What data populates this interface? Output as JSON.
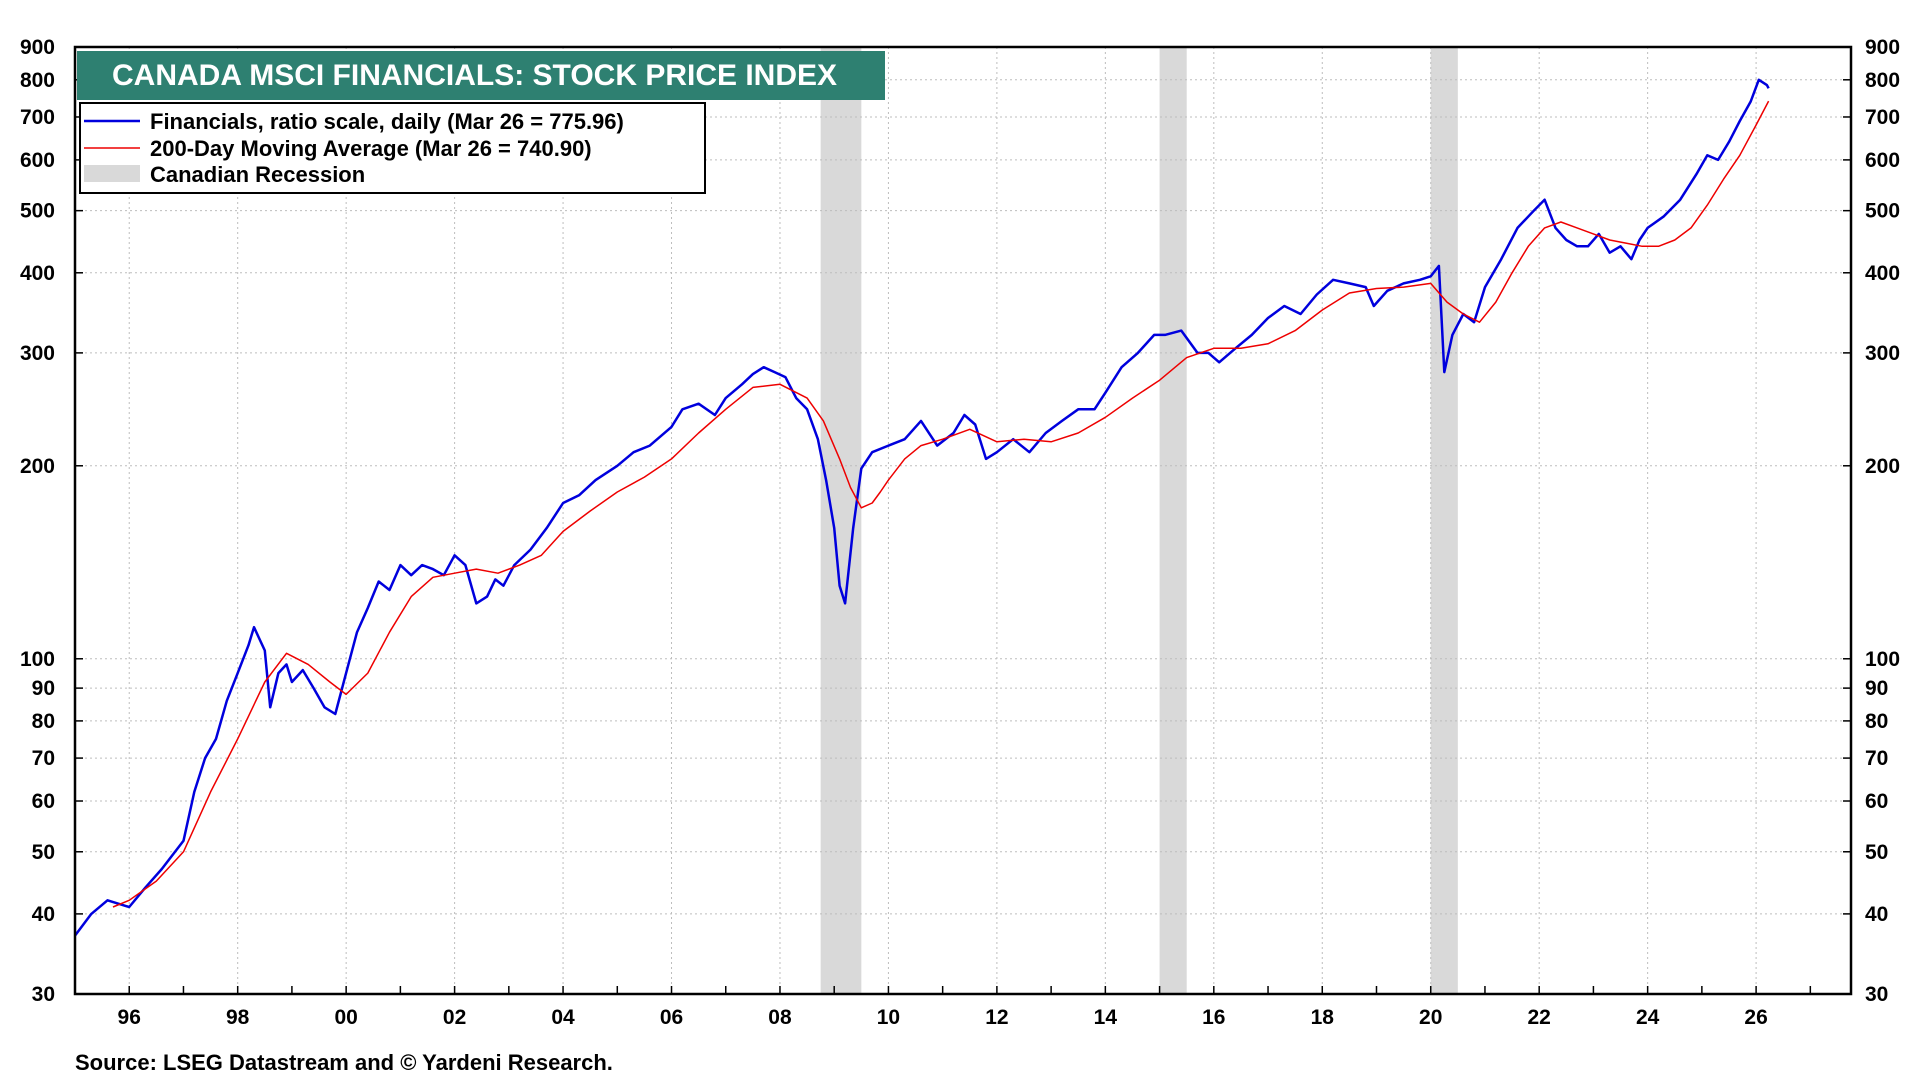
{
  "chart_data": {
    "type": "line",
    "title": "CANADA MSCI FINANCIALS: STOCK PRICE INDEX",
    "source": "Source: LSEG Datastream and © Yardeni Research.",
    "scale": "log",
    "xlim": [
      1995.0,
      2027.75
    ],
    "ylim": [
      30,
      900
    ],
    "x_ticks": [
      {
        "value": 1996,
        "label": "96"
      },
      {
        "value": 1998,
        "label": "98"
      },
      {
        "value": 2000,
        "label": "00"
      },
      {
        "value": 2002,
        "label": "02"
      },
      {
        "value": 2004,
        "label": "04"
      },
      {
        "value": 2006,
        "label": "06"
      },
      {
        "value": 2008,
        "label": "08"
      },
      {
        "value": 2010,
        "label": "10"
      },
      {
        "value": 2012,
        "label": "12"
      },
      {
        "value": 2014,
        "label": "14"
      },
      {
        "value": 2016,
        "label": "16"
      },
      {
        "value": 2018,
        "label": "18"
      },
      {
        "value": 2020,
        "label": "20"
      },
      {
        "value": 2022,
        "label": "22"
      },
      {
        "value": 2024,
        "label": "24"
      },
      {
        "value": 2026,
        "label": "26"
      }
    ],
    "y_ticks": [
      {
        "value": 30,
        "label": "30"
      },
      {
        "value": 40,
        "label": "40"
      },
      {
        "value": 50,
        "label": "50"
      },
      {
        "value": 60,
        "label": "60"
      },
      {
        "value": 70,
        "label": "70"
      },
      {
        "value": 80,
        "label": "80"
      },
      {
        "value": 90,
        "label": "90"
      },
      {
        "value": 100,
        "label": "100"
      },
      {
        "value": 200,
        "label": "200"
      },
      {
        "value": 300,
        "label": "300"
      },
      {
        "value": 400,
        "label": "400"
      },
      {
        "value": 500,
        "label": "500"
      },
      {
        "value": 600,
        "label": "600"
      },
      {
        "value": 700,
        "label": "700"
      },
      {
        "value": 800,
        "label": "800"
      },
      {
        "value": 900,
        "label": "900"
      }
    ],
    "recessions": [
      {
        "start": 2008.75,
        "end": 2009.5
      },
      {
        "start": 2015.0,
        "end": 2015.5
      },
      {
        "start": 2020.0,
        "end": 2020.5
      }
    ],
    "legend": [
      {
        "label": "Financials, ratio scale, daily (Mar 26 = 775.96)",
        "kind": "line",
        "color": "#0000dd"
      },
      {
        "label": "200-Day Moving Average (Mar 26 = 740.90)",
        "kind": "line",
        "color": "#ee0000"
      },
      {
        "label": "Canadian Recession",
        "kind": "box",
        "color": "#d9d9d9"
      }
    ],
    "series": [
      {
        "name": "Financials",
        "color": "#0000dd",
        "x": [
          1995.0,
          1995.3,
          1995.6,
          1996.0,
          1996.3,
          1996.6,
          1997.0,
          1997.2,
          1997.4,
          1997.6,
          1997.8,
          1998.0,
          1998.2,
          1998.3,
          1998.5,
          1998.6,
          1998.75,
          1998.9,
          1999.0,
          1999.2,
          1999.4,
          1999.6,
          1999.8,
          2000.0,
          2000.2,
          2000.4,
          2000.6,
          2000.8,
          2001.0,
          2001.2,
          2001.4,
          2001.6,
          2001.8,
          2002.0,
          2002.2,
          2002.4,
          2002.6,
          2002.75,
          2002.9,
          2003.1,
          2003.4,
          2003.7,
          2004.0,
          2004.3,
          2004.6,
          2005.0,
          2005.3,
          2005.6,
          2006.0,
          2006.2,
          2006.5,
          2006.8,
          2007.0,
          2007.3,
          2007.5,
          2007.7,
          2007.9,
          2008.1,
          2008.3,
          2008.5,
          2008.7,
          2008.85,
          2009.0,
          2009.1,
          2009.2,
          2009.35,
          2009.5,
          2009.7,
          2010.0,
          2010.3,
          2010.6,
          2010.9,
          2011.2,
          2011.4,
          2011.6,
          2011.8,
          2012.0,
          2012.3,
          2012.6,
          2012.9,
          2013.2,
          2013.5,
          2013.8,
          2014.0,
          2014.3,
          2014.6,
          2014.9,
          2015.1,
          2015.4,
          2015.7,
          2015.9,
          2016.1,
          2016.4,
          2016.7,
          2017.0,
          2017.3,
          2017.6,
          2017.9,
          2018.2,
          2018.5,
          2018.8,
          2018.95,
          2019.2,
          2019.5,
          2019.8,
          2020.0,
          2020.15,
          2020.25,
          2020.4,
          2020.6,
          2020.8,
          2021.0,
          2021.3,
          2021.6,
          2021.9,
          2022.1,
          2022.3,
          2022.5,
          2022.7,
          2022.9,
          2023.1,
          2023.3,
          2023.5,
          2023.7,
          2023.85,
          2024.0,
          2024.3,
          2024.6,
          2024.9,
          2025.1,
          2025.3,
          2025.5,
          2025.7,
          2025.9,
          2026.05,
          2026.2,
          2026.23
        ],
        "values": [
          37,
          40,
          42,
          41,
          44,
          47,
          52,
          62,
          70,
          75,
          86,
          95,
          105,
          112,
          103,
          84,
          95,
          98,
          92,
          96,
          90,
          84,
          82,
          95,
          110,
          120,
          132,
          128,
          140,
          135,
          140,
          138,
          135,
          145,
          140,
          122,
          125,
          133,
          130,
          140,
          148,
          160,
          175,
          180,
          190,
          200,
          210,
          215,
          230,
          245,
          250,
          240,
          255,
          268,
          278,
          285,
          280,
          275,
          255,
          245,
          220,
          190,
          160,
          130,
          122,
          160,
          198,
          210,
          215,
          220,
          235,
          215,
          225,
          240,
          232,
          205,
          210,
          220,
          210,
          225,
          235,
          245,
          245,
          260,
          285,
          300,
          320,
          320,
          325,
          300,
          300,
          290,
          305,
          320,
          340,
          355,
          345,
          370,
          390,
          385,
          380,
          355,
          375,
          385,
          390,
          395,
          410,
          280,
          320,
          345,
          335,
          380,
          420,
          470,
          500,
          520,
          470,
          450,
          440,
          440,
          460,
          430,
          440,
          420,
          450,
          470,
          490,
          520,
          570,
          610,
          600,
          640,
          690,
          740,
          800,
          785,
          776
        ]
      },
      {
        "name": "200-Day Moving Average",
        "color": "#ee0000",
        "x": [
          1995.7,
          1996.0,
          1996.5,
          1997.0,
          1997.5,
          1998.0,
          1998.5,
          1998.9,
          1999.3,
          1999.7,
          2000.0,
          2000.4,
          2000.8,
          2001.2,
          2001.6,
          2002.0,
          2002.4,
          2002.8,
          2003.2,
          2003.6,
          2004.0,
          2004.5,
          2005.0,
          2005.5,
          2006.0,
          2006.5,
          2007.0,
          2007.5,
          2008.0,
          2008.5,
          2008.8,
          2009.1,
          2009.3,
          2009.5,
          2009.7,
          2009.85,
          2010.0,
          2010.3,
          2010.6,
          2011.0,
          2011.5,
          2012.0,
          2012.5,
          2013.0,
          2013.5,
          2014.0,
          2014.5,
          2015.0,
          2015.5,
          2016.0,
          2016.5,
          2017.0,
          2017.5,
          2018.0,
          2018.5,
          2019.0,
          2019.5,
          2020.0,
          2020.3,
          2020.6,
          2020.9,
          2021.2,
          2021.5,
          2021.8,
          2022.1,
          2022.4,
          2022.7,
          2023.0,
          2023.3,
          2023.6,
          2023.9,
          2024.2,
          2024.5,
          2024.8,
          2025.1,
          2025.4,
          2025.7,
          2026.0,
          2026.23
        ],
        "values": [
          41,
          42,
          45,
          50,
          62,
          75,
          92,
          102,
          98,
          92,
          88,
          95,
          110,
          125,
          134,
          136,
          138,
          136,
          140,
          145,
          158,
          170,
          182,
          192,
          205,
          225,
          245,
          265,
          268,
          255,
          235,
          205,
          185,
          172,
          175,
          182,
          190,
          205,
          215,
          220,
          228,
          218,
          220,
          218,
          225,
          238,
          255,
          272,
          295,
          305,
          305,
          310,
          325,
          350,
          372,
          378,
          380,
          385,
          360,
          345,
          335,
          360,
          400,
          440,
          470,
          480,
          470,
          460,
          450,
          445,
          440,
          440,
          450,
          470,
          510,
          560,
          610,
          680,
          741
        ]
      }
    ]
  }
}
